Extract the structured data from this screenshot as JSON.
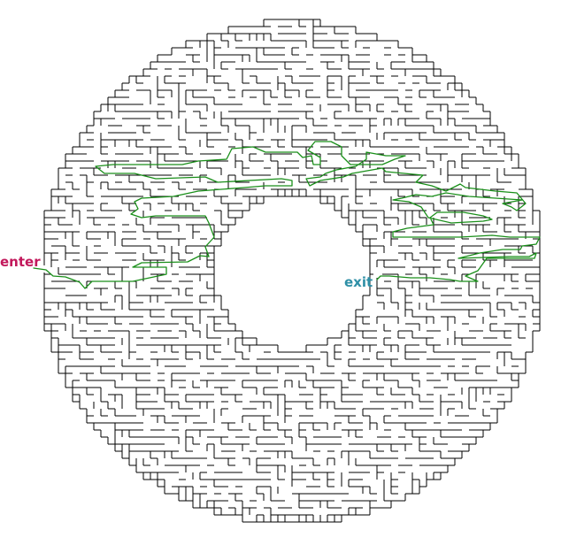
{
  "maze": {
    "enter_label": "enter",
    "exit_label": "exit",
    "colors": {
      "background": "#ffffff",
      "walls": "#000000",
      "solution_path": "#1a8f1a",
      "enter_label": "#c2185b",
      "exit_label": "#2e8fa6"
    },
    "maze_seed": 17
  }
}
